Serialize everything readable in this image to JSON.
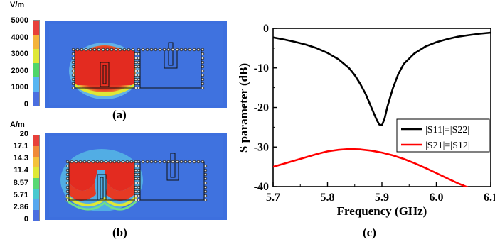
{
  "panel_a": {
    "label": "(a)",
    "unit": "V/m",
    "ticks": [
      "5000",
      "4000",
      "3000",
      "2000",
      "1000",
      "0"
    ],
    "colorbar": [
      "#e8403a",
      "#f4b33a",
      "#dfe836",
      "#4fd66a",
      "#58b6f2",
      "#4a6ee0"
    ]
  },
  "panel_b": {
    "label": "(b)",
    "unit": "A/m",
    "ticks": [
      "20",
      "17.1",
      "14.3",
      "11.4",
      "8.57",
      "5.71",
      "2.86",
      "0"
    ],
    "colorbar": [
      "#e8403a",
      "#f08a38",
      "#f4c23a",
      "#dfe836",
      "#58d874",
      "#49c9cf",
      "#57a8ef",
      "#4a6ee0"
    ]
  },
  "panel_c": {
    "label": "(c)"
  },
  "chart_data": {
    "type": "line",
    "xlabel": "Frequency (GHz)",
    "ylabel": "S parameter (dB)",
    "xlim": [
      5.7,
      6.1
    ],
    "ylim": [
      -40,
      0
    ],
    "xticks": [
      "5.7",
      "5.8",
      "5.9",
      "6.0",
      "6.1"
    ],
    "yticks": [
      "0",
      "-10",
      "-20",
      "-30",
      "-40"
    ],
    "legend_position": "right",
    "series": [
      {
        "name": "|S11|=|S22|",
        "color": "#000000",
        "x": [
          5.7,
          5.72,
          5.74,
          5.76,
          5.78,
          5.8,
          5.82,
          5.84,
          5.85,
          5.86,
          5.87,
          5.88,
          5.89,
          5.895,
          5.9,
          5.905,
          5.91,
          5.92,
          5.93,
          5.94,
          5.96,
          5.98,
          6.0,
          6.02,
          6.04,
          6.06,
          6.08,
          6.1
        ],
        "y": [
          -2.3,
          -2.8,
          -3.4,
          -4.1,
          -5.0,
          -6.2,
          -7.8,
          -10.1,
          -11.8,
          -14.0,
          -16.6,
          -19.8,
          -23.0,
          -24.3,
          -24.5,
          -22.8,
          -19.8,
          -15.2,
          -11.6,
          -9.0,
          -6.3,
          -4.6,
          -3.5,
          -2.7,
          -2.1,
          -1.7,
          -1.35,
          -1.1
        ]
      },
      {
        "name": "|S21|=|S12|",
        "color": "#ff0000",
        "x": [
          5.7,
          5.72,
          5.74,
          5.76,
          5.78,
          5.8,
          5.82,
          5.84,
          5.86,
          5.88,
          5.9,
          5.92,
          5.94,
          5.96,
          5.98,
          6.0,
          6.02,
          6.04,
          6.06
        ],
        "y": [
          -35.0,
          -34.2,
          -33.4,
          -32.6,
          -31.8,
          -31.1,
          -30.7,
          -30.5,
          -30.6,
          -30.9,
          -31.4,
          -32.1,
          -33.0,
          -34.1,
          -35.3,
          -36.6,
          -37.9,
          -39.2,
          -40.3
        ]
      }
    ]
  }
}
